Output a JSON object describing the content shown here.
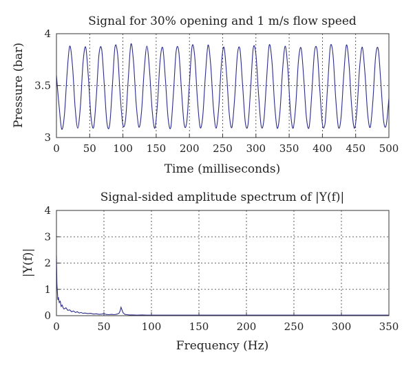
{
  "chart_data": [
    {
      "type": "line",
      "title": "Signal for 30% opening and 1 m/s flow speed",
      "xlabel": "Time (milliseconds)",
      "ylabel": "Pressure (bar)",
      "xlim": [
        0,
        500
      ],
      "ylim": [
        3,
        4
      ],
      "xticks": [
        "0",
        "50",
        "100",
        "150",
        "200",
        "250",
        "300",
        "350",
        "400",
        "450",
        "500"
      ],
      "yticks": [
        "3",
        "3.5",
        "4"
      ],
      "grid": true,
      "series": [
        {
          "color": "#2b2b8c",
          "x": [
            0,
            4,
            8,
            12,
            16,
            20,
            24,
            28,
            32,
            36,
            40,
            44,
            48,
            52,
            56,
            60,
            64,
            68,
            72,
            76,
            80,
            84,
            88,
            92,
            96,
            100,
            104,
            108,
            112,
            116,
            120,
            124,
            128,
            132,
            136,
            140,
            144,
            148,
            152,
            156,
            160,
            164,
            168,
            172,
            176,
            180,
            184,
            188,
            192,
            196,
            200,
            204,
            208,
            212,
            216,
            220,
            224,
            228,
            232,
            236,
            240,
            244,
            248,
            252,
            256,
            260,
            264,
            268,
            272,
            276,
            280,
            284,
            288,
            292,
            296,
            300,
            304,
            308,
            312,
            316,
            320,
            324,
            328,
            332,
            336,
            340,
            344,
            348,
            352,
            356,
            360,
            364,
            368,
            372,
            376,
            380,
            384,
            388,
            392,
            396,
            400,
            404,
            408,
            412,
            416,
            420,
            424,
            428,
            432,
            436,
            440,
            444,
            448,
            452,
            456,
            460,
            464,
            468,
            472,
            476,
            480,
            484,
            488,
            492,
            496,
            500
          ],
          "y": [
            3.6,
            3.3,
            3.08,
            3.22,
            3.62,
            3.88,
            3.7,
            3.3,
            3.09,
            3.3,
            3.72,
            3.87,
            3.58,
            3.2,
            3.1,
            3.4,
            3.8,
            3.85,
            3.5,
            3.14,
            3.12,
            3.48,
            3.87,
            3.8,
            3.4,
            3.12,
            3.18,
            3.56,
            3.9,
            3.72,
            3.32,
            3.1,
            3.25,
            3.65,
            3.88,
            3.65,
            3.26,
            3.09,
            3.33,
            3.75,
            3.86,
            3.55,
            3.18,
            3.1,
            3.43,
            3.83,
            3.83,
            3.46,
            3.13,
            3.15,
            3.52,
            3.88,
            3.78,
            3.37,
            3.1,
            3.2,
            3.6,
            3.89,
            3.7,
            3.29,
            3.09,
            3.28,
            3.7,
            3.87,
            3.6,
            3.22,
            3.1,
            3.38,
            3.79,
            3.85,
            3.5,
            3.15,
            3.12,
            3.47,
            3.86,
            3.8,
            3.41,
            3.11,
            3.17,
            3.56,
            3.89,
            3.74,
            3.33,
            3.09,
            3.24,
            3.64,
            3.88,
            3.66,
            3.25,
            3.09,
            3.32,
            3.74,
            3.86,
            3.56,
            3.19,
            3.1,
            3.42,
            3.82,
            3.84,
            3.47,
            3.13,
            3.14,
            3.51,
            3.88,
            3.79,
            3.38,
            3.1,
            3.19,
            3.59,
            3.89,
            3.71,
            3.3,
            3.09,
            3.27,
            3.68,
            3.87,
            3.62,
            3.23,
            3.1,
            3.36,
            3.78,
            3.85,
            3.52,
            3.16,
            3.12,
            3.38
          ]
        }
      ]
    },
    {
      "type": "line",
      "title": "Signal-sided amplitude spectrum of |Y(f)|",
      "xlabel": "Frequency (Hz)",
      "ylabel": "|Y(f)|",
      "xlim": [
        0,
        350
      ],
      "ylim": [
        0,
        4
      ],
      "xticks": [
        "0",
        "50",
        "100",
        "150",
        "200",
        "250",
        "300",
        "350"
      ],
      "yticks": [
        "0",
        "1",
        "2",
        "3",
        "4"
      ],
      "grid": true,
      "series": [
        {
          "color": "#2b2b8c",
          "x": [
            0,
            0.5,
            1,
            1.5,
            2,
            3,
            4,
            5,
            6,
            7,
            8,
            10,
            12,
            14,
            16,
            18,
            20,
            22,
            24,
            26,
            28,
            30,
            33,
            36,
            39,
            42,
            45,
            48,
            50,
            52,
            55,
            58,
            61,
            64,
            66,
            67,
            68,
            69,
            70,
            71,
            72,
            74,
            77,
            80,
            85,
            90,
            95,
            100,
            110,
            120,
            140,
            160,
            180,
            200,
            220,
            250,
            280,
            300,
            320,
            350
          ],
          "y": [
            2.3,
            1.2,
            0.9,
            0.6,
            0.7,
            0.5,
            0.55,
            0.35,
            0.4,
            0.3,
            0.25,
            0.3,
            0.2,
            0.22,
            0.15,
            0.18,
            0.12,
            0.15,
            0.1,
            0.12,
            0.09,
            0.1,
            0.08,
            0.09,
            0.06,
            0.07,
            0.05,
            0.06,
            0.08,
            0.05,
            0.04,
            0.05,
            0.04,
            0.06,
            0.1,
            0.18,
            0.32,
            0.22,
            0.12,
            0.08,
            0.05,
            0.04,
            0.03,
            0.03,
            0.02,
            0.03,
            0.02,
            0.02,
            0.02,
            0.02,
            0.02,
            0.02,
            0.02,
            0.02,
            0.02,
            0.02,
            0.02,
            0.02,
            0.02,
            0.02
          ]
        }
      ]
    }
  ]
}
